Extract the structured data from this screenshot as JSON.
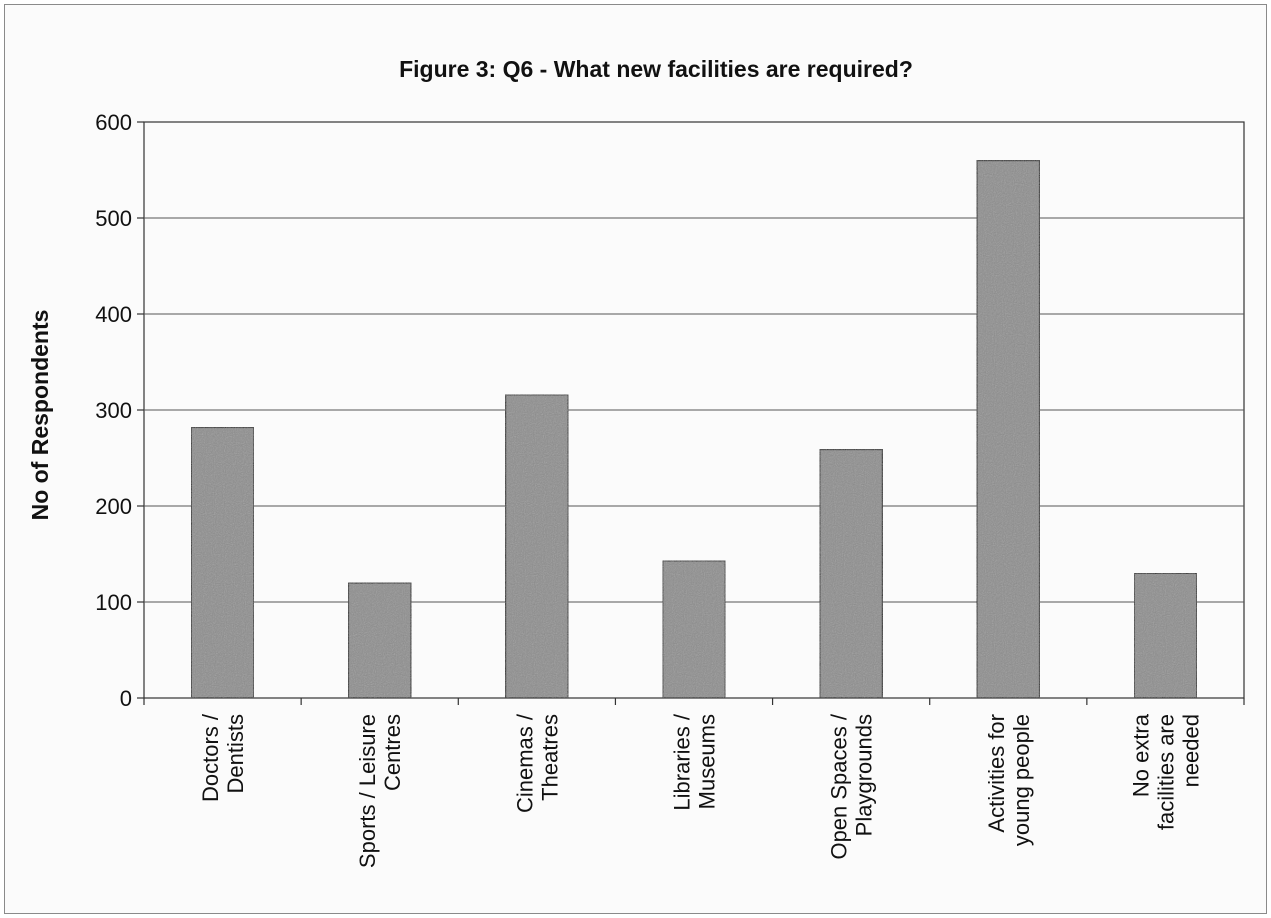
{
  "chart_data": {
    "type": "bar",
    "title": "Figure 3: Q6 - What new facilities are required?",
    "xlabel": "",
    "ylabel": "No of Respondents",
    "ylim": [
      0,
      600
    ],
    "yticks": [
      "0",
      "100",
      "200",
      "300",
      "400",
      "500",
      "600"
    ],
    "grid": true,
    "categories": [
      [
        "Doctors /",
        "Dentists"
      ],
      [
        "Sports / Leisure",
        "Centres"
      ],
      [
        "Cinemas /",
        "Theatres"
      ],
      [
        "Libraries /",
        "Museums"
      ],
      [
        "Open Spaces /",
        "Playgrounds"
      ],
      [
        "Activities for",
        "young people"
      ],
      [
        "No extra",
        "facilities are",
        "needed"
      ]
    ],
    "values": [
      282,
      120,
      316,
      143,
      259,
      560,
      130
    ],
    "colors": {
      "bar": "#8c8c8c",
      "bar_edge": "#222222",
      "grid": "#555555"
    }
  }
}
